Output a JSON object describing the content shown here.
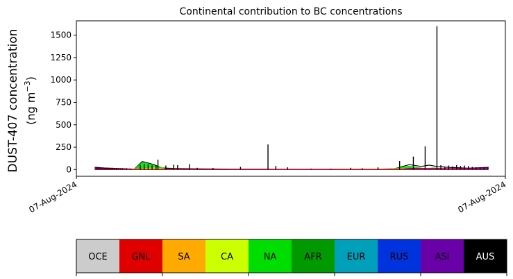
{
  "chart_data": {
    "type": "area",
    "title": "Continental contribution to BC concentrations",
    "ylabel_line1": "DUST-407 concentration",
    "ylabel_line2_prefix": "(ng m",
    "ylabel_line2_sup": "−3",
    "ylabel_line2_suffix": ")",
    "x_tick_labels": [
      "07-Aug-2024",
      "07-Aug-2024"
    ],
    "y_ticks": [
      0,
      250,
      500,
      750,
      1000,
      1250,
      1500
    ],
    "ylim": [
      -75,
      1660
    ],
    "xlim": [
      0,
      1
    ],
    "grid": false,
    "series": [
      {
        "name": "AUS",
        "color": "#000000",
        "points": [
          [
            0.0,
            25
          ],
          [
            0.02,
            18
          ],
          [
            0.05,
            12
          ],
          [
            0.08,
            8
          ],
          [
            0.1,
            5
          ],
          [
            0.12,
            90
          ],
          [
            0.15,
            55
          ],
          [
            0.17,
            18
          ],
          [
            0.2,
            12
          ],
          [
            0.25,
            8
          ],
          [
            0.35,
            5
          ],
          [
            0.45,
            4
          ],
          [
            0.55,
            4
          ],
          [
            0.65,
            4
          ],
          [
            0.73,
            6
          ],
          [
            0.76,
            8
          ],
          [
            0.8,
            55
          ],
          [
            0.83,
            35
          ],
          [
            0.85,
            50
          ],
          [
            0.87,
            35
          ],
          [
            0.9,
            25
          ],
          [
            0.95,
            15
          ],
          [
            1.0,
            25
          ]
        ]
      },
      {
        "name": "NA",
        "color": "#00e000",
        "points": [
          [
            0.0,
            3
          ],
          [
            0.1,
            3
          ],
          [
            0.12,
            80
          ],
          [
            0.15,
            45
          ],
          [
            0.18,
            8
          ],
          [
            0.22,
            4
          ],
          [
            0.35,
            2
          ],
          [
            0.55,
            2
          ],
          [
            0.75,
            3
          ],
          [
            0.8,
            40
          ],
          [
            0.84,
            10
          ],
          [
            0.86,
            20
          ],
          [
            0.9,
            8
          ],
          [
            1.0,
            5
          ]
        ]
      },
      {
        "name": "CA",
        "color": "#ccff00",
        "points": [
          [
            0.0,
            2
          ],
          [
            0.12,
            10
          ],
          [
            0.15,
            20
          ],
          [
            0.18,
            6
          ],
          [
            0.25,
            2
          ],
          [
            0.55,
            1
          ],
          [
            0.8,
            10
          ],
          [
            0.85,
            8
          ],
          [
            1.0,
            2
          ]
        ]
      },
      {
        "name": "ASI",
        "color": "#6a00a8",
        "points": [
          [
            0.0,
            20
          ],
          [
            0.05,
            10
          ],
          [
            0.1,
            5
          ],
          [
            0.3,
            3
          ],
          [
            0.6,
            3
          ],
          [
            0.78,
            5
          ],
          [
            0.8,
            15
          ],
          [
            0.88,
            12
          ],
          [
            0.95,
            15
          ],
          [
            1.0,
            20
          ]
        ]
      },
      {
        "name": "RUS",
        "color": "#0033dd",
        "points": [
          [
            0.0,
            2
          ],
          [
            0.1,
            2
          ],
          [
            0.3,
            2
          ],
          [
            0.6,
            2
          ],
          [
            0.8,
            5
          ],
          [
            0.9,
            4
          ],
          [
            1.0,
            8
          ]
        ]
      },
      {
        "name": "GNL",
        "color": "#ff0000",
        "points": [
          [
            0.0,
            2
          ],
          [
            0.12,
            2
          ],
          [
            0.3,
            1
          ],
          [
            0.6,
            1
          ],
          [
            0.78,
            3
          ],
          [
            0.85,
            5
          ],
          [
            1.0,
            2
          ]
        ]
      }
    ],
    "spikes": [
      [
        0.005,
        30
      ],
      [
        0.01,
        28
      ],
      [
        0.015,
        26
      ],
      [
        0.02,
        25
      ],
      [
        0.025,
        22
      ],
      [
        0.03,
        22
      ],
      [
        0.035,
        20
      ],
      [
        0.04,
        20
      ],
      [
        0.045,
        20
      ],
      [
        0.05,
        18
      ],
      [
        0.055,
        18
      ],
      [
        0.06,
        16
      ],
      [
        0.065,
        15
      ],
      [
        0.07,
        15
      ],
      [
        0.08,
        15
      ],
      [
        0.09,
        12
      ],
      [
        0.115,
        50
      ],
      [
        0.125,
        60
      ],
      [
        0.135,
        55
      ],
      [
        0.145,
        45
      ],
      [
        0.155,
        40
      ],
      [
        0.16,
        110
      ],
      [
        0.18,
        45
      ],
      [
        0.2,
        55
      ],
      [
        0.21,
        50
      ],
      [
        0.24,
        60
      ],
      [
        0.26,
        20
      ],
      [
        0.3,
        18
      ],
      [
        0.37,
        30
      ],
      [
        0.44,
        280
      ],
      [
        0.46,
        40
      ],
      [
        0.49,
        25
      ],
      [
        0.55,
        10
      ],
      [
        0.6,
        10
      ],
      [
        0.65,
        20
      ],
      [
        0.68,
        15
      ],
      [
        0.72,
        25
      ],
      [
        0.775,
        95
      ],
      [
        0.81,
        145
      ],
      [
        0.84,
        260
      ],
      [
        0.87,
        1600
      ],
      [
        0.88,
        50
      ],
      [
        0.89,
        30
      ],
      [
        0.9,
        45
      ],
      [
        0.91,
        35
      ],
      [
        0.92,
        50
      ],
      [
        0.93,
        40
      ],
      [
        0.94,
        45
      ],
      [
        0.95,
        40
      ],
      [
        0.96,
        30
      ],
      [
        0.97,
        25
      ],
      [
        0.98,
        20
      ],
      [
        0.99,
        25
      ],
      [
        1.0,
        30
      ]
    ],
    "legend_entries": [
      {
        "label": "OCE",
        "color": "#cccccc",
        "text_color": "#000000"
      },
      {
        "label": "GNL",
        "color": "#e00000",
        "text_color": "#000000"
      },
      {
        "label": "SA",
        "color": "#ffaa00",
        "text_color": "#000000"
      },
      {
        "label": "CA",
        "color": "#ccff00",
        "text_color": "#000000"
      },
      {
        "label": "NA",
        "color": "#00dd00",
        "text_color": "#000000"
      },
      {
        "label": "AFR",
        "color": "#009900",
        "text_color": "#000000"
      },
      {
        "label": "EUR",
        "color": "#00a0bb",
        "text_color": "#000000"
      },
      {
        "label": "RUS",
        "color": "#0033dd",
        "text_color": "#000000"
      },
      {
        "label": "ASI",
        "color": "#6a00a8",
        "text_color": "#000000"
      },
      {
        "label": "AUS",
        "color": "#000000",
        "text_color": "#ffffff"
      }
    ]
  }
}
